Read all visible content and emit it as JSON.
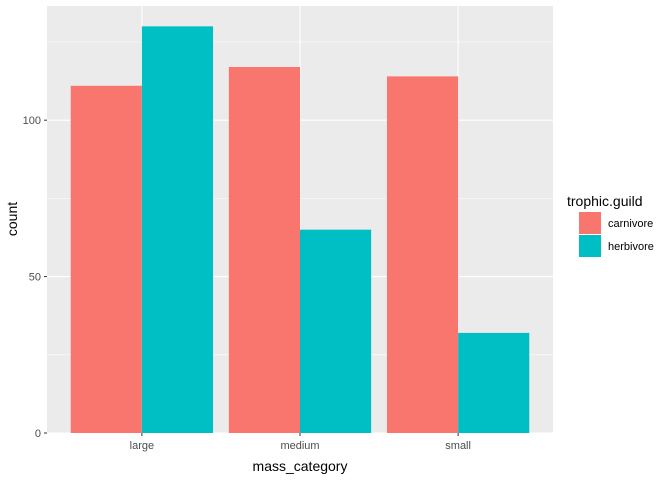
{
  "chart_data": {
    "type": "bar",
    "categories": [
      "large",
      "medium",
      "small"
    ],
    "series": [
      {
        "name": "carnivore",
        "values": [
          111,
          117,
          114
        ],
        "color": "#F8766D"
      },
      {
        "name": "herbivore",
        "values": [
          130,
          65,
          32
        ],
        "color": "#00BFC4"
      }
    ],
    "xlabel": "mass_category",
    "ylabel": "count",
    "ylim": [
      0,
      136.5
    ],
    "yticks": [
      0,
      50,
      100
    ],
    "grid": true,
    "panel_background": "#EBEBEB",
    "legend": {
      "title": "trophic.guild",
      "position": "right"
    }
  }
}
